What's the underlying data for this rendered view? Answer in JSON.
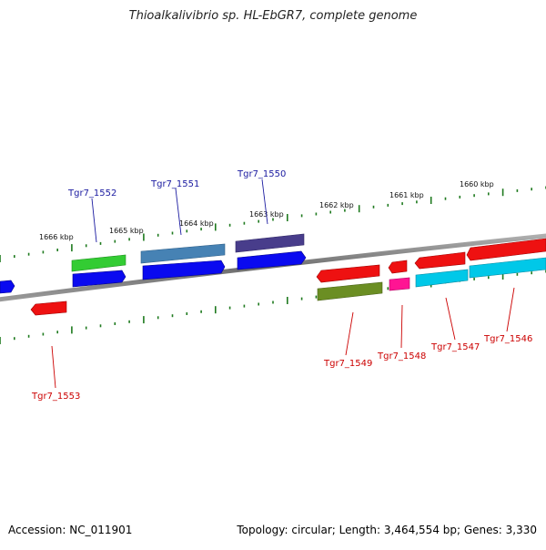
{
  "title": "Thioalkalivibrio sp. HL-EbGR7, complete genome",
  "footer": {
    "accession": "Accession: NC_011901",
    "summary": "Topology: circular; Length: 3,464,554 bp; Genes: 3,330"
  },
  "scale_labels": [
    "1666 kbp",
    "1665 kbp",
    "1664 kbp",
    "1663 kbp",
    "1662 kbp",
    "1661 kbp",
    "1660 kbp"
  ],
  "gene_labels_top": [
    "Tgr7_1552",
    "Tgr7_1551",
    "Tgr7_1550"
  ],
  "gene_labels_bottom": [
    "Tgr7_1553",
    "Tgr7_1549",
    "Tgr7_1548",
    "Tgr7_1547",
    "Tgr7_1546"
  ],
  "colors": {
    "top_label": "#1a1aa0",
    "bottom_label": "#cc0000",
    "tick": "#1f7a1f",
    "backbone": "#808080",
    "red_feature": "#ee1111",
    "blue_feature": "#0a0af0",
    "green_feature": "#33cc33",
    "steelblue_feature": "#4682b4",
    "slate_feature": "#483d8b",
    "olive_feature": "#6b8e23",
    "pink_feature": "#ff1493",
    "cyan_feature": "#00c8e8"
  }
}
